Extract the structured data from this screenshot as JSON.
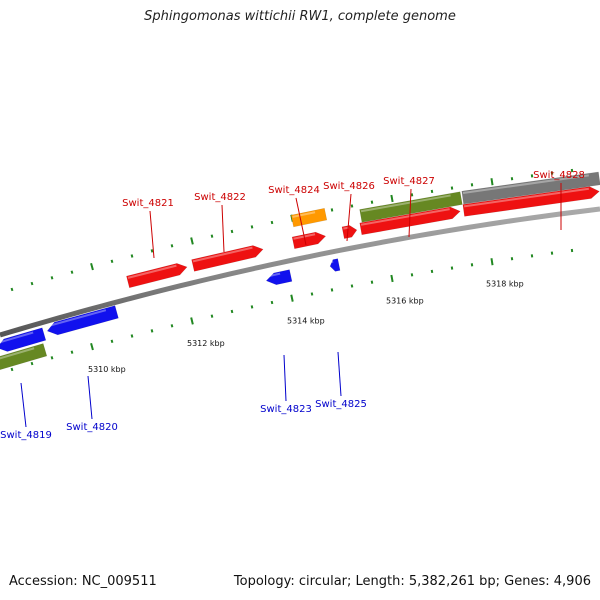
{
  "title": "Sphingomonas wittichii RW1, complete genome",
  "footer": {
    "accession": "Accession: NC_009511",
    "summary": "Topology: circular; Length: 5,382,261 bp; Genes: 4,906"
  },
  "colors": {
    "forward_gene": "#ee1111",
    "reverse_gene": "#1111ee",
    "rna": "#ff9900",
    "forward_region": "#668822",
    "other_region": "#777777",
    "ticks": "#228822",
    "backbone": "#888888",
    "forward_label": "#cc0000",
    "reverse_label": "#0000cc"
  },
  "scale_labels": [
    "5310 kbp",
    "5312 kbp",
    "5314 kbp",
    "5316 kbp",
    "5318 kbp"
  ],
  "forward_genes": [
    {
      "label": "Swit_4821",
      "color_key": "forward_gene"
    },
    {
      "label": "Swit_4822",
      "color_key": "forward_gene"
    },
    {
      "label": "Swit_4824",
      "color_key": "rna"
    },
    {
      "label": "Swit_4826",
      "color_key": "forward_gene"
    },
    {
      "label": "Swit_4827",
      "color_key": "forward_gene"
    },
    {
      "label": "Swit_4828",
      "color_key": "forward_gene"
    }
  ],
  "reverse_genes": [
    {
      "label": "Swit_4819",
      "color_key": "reverse_gene"
    },
    {
      "label": "Swit_4820",
      "color_key": "reverse_gene"
    },
    {
      "label": "Swit_4823",
      "color_key": "reverse_gene"
    },
    {
      "label": "Swit_4825",
      "color_key": "reverse_gene"
    }
  ]
}
